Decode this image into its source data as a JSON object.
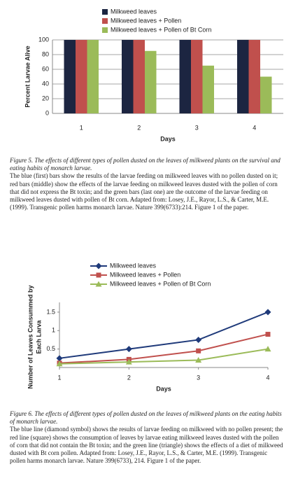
{
  "chart_data": [
    {
      "type": "bar",
      "categories": [
        "1",
        "2",
        "3",
        "4"
      ],
      "xlabel": "Days",
      "ylabel": "Percent Larvae Alive",
      "ylim": [
        0,
        100
      ],
      "yticks": [
        0,
        20,
        40,
        60,
        80,
        100
      ],
      "grid": true,
      "legend": "top",
      "series": [
        {
          "name": "Milkweed leaves",
          "color": "#1c2541",
          "values": [
            100,
            100,
            100,
            100
          ]
        },
        {
          "name": "Milkweed leaves + Pollen",
          "color": "#c0504d",
          "values": [
            100,
            100,
            100,
            100
          ]
        },
        {
          "name": "Milkweed leaves + Pollen of Bt Corn",
          "color": "#9bbb59",
          "values": [
            100,
            85,
            65,
            50
          ]
        }
      ]
    },
    {
      "type": "line",
      "x": [
        1,
        2,
        3,
        4
      ],
      "xlim": [
        1,
        4
      ],
      "xticks": [
        1,
        2,
        3,
        4
      ],
      "xlabel": "Days",
      "ylabel": [
        "Number of Leaves Consummed by",
        "Each Larva"
      ],
      "ylim": [
        0,
        1.65
      ],
      "yticks": [
        0.5,
        1,
        1.5
      ],
      "grid": false,
      "legend": "top",
      "series": [
        {
          "name": "Milkweed leaves",
          "color": "#1f3a7a",
          "marker": "diamond",
          "values": [
            0.25,
            0.5,
            0.75,
            1.5
          ]
        },
        {
          "name": "Milkweed leaves + Pollen",
          "color": "#c0504d",
          "marker": "square",
          "values": [
            0.12,
            0.22,
            0.45,
            0.9
          ]
        },
        {
          "name": "Milkweed leaves + Pollen of Bt Corn",
          "color": "#9bbb59",
          "marker": "triangle",
          "values": [
            0.1,
            0.15,
            0.2,
            0.5
          ]
        }
      ]
    }
  ],
  "captions": [
    {
      "title": "Figure 5. The effects of different types of pollen dusted on the leaves of milkweed plants on the survival and eating habits of monarch larvae.",
      "body": "The blue (first) bars show the results of the larvae feeding on milkweed leaves with no pollen dusted on it; red bars (middle) show the effects of the larvae feeding on milkweed leaves dusted with the pollen of corn that did not express the Bt toxin; and the green bars (last one) are the outcome of the larvae feeding on milkweed leaves dusted with pollen of Bt corn. Adapted from: Losey, J.E., Rayor, L.S., & Carter, M.E. (1999). Transgenic pollen harms monarch larvae. Nature 399(6733):214. Figure 1 of the paper."
    },
    {
      "title": "Figure 6. The effects of different types of pollen dusted on the leaves of milkweed plants on the eating habits of monarch larvae.",
      "body": "The blue line (diamond symbol) shows the results of larvae feeding on milkweed with no pollen present; the red line (square) shows the consumption of leaves by larvae eating milkweed leaves dusted with the pollen of corn that did not contain the Bt toxin; and the green line (triangle) shows the effects of a diet of milkweed dusted with Bt corn pollen. Adapted from: Losey, J.E., Rayor, L.S., & Carter, M.E. (1999). Transgenic pollen harms monarch larvae. Nature 399(6733), 214. Figure 1 of the paper."
    }
  ]
}
